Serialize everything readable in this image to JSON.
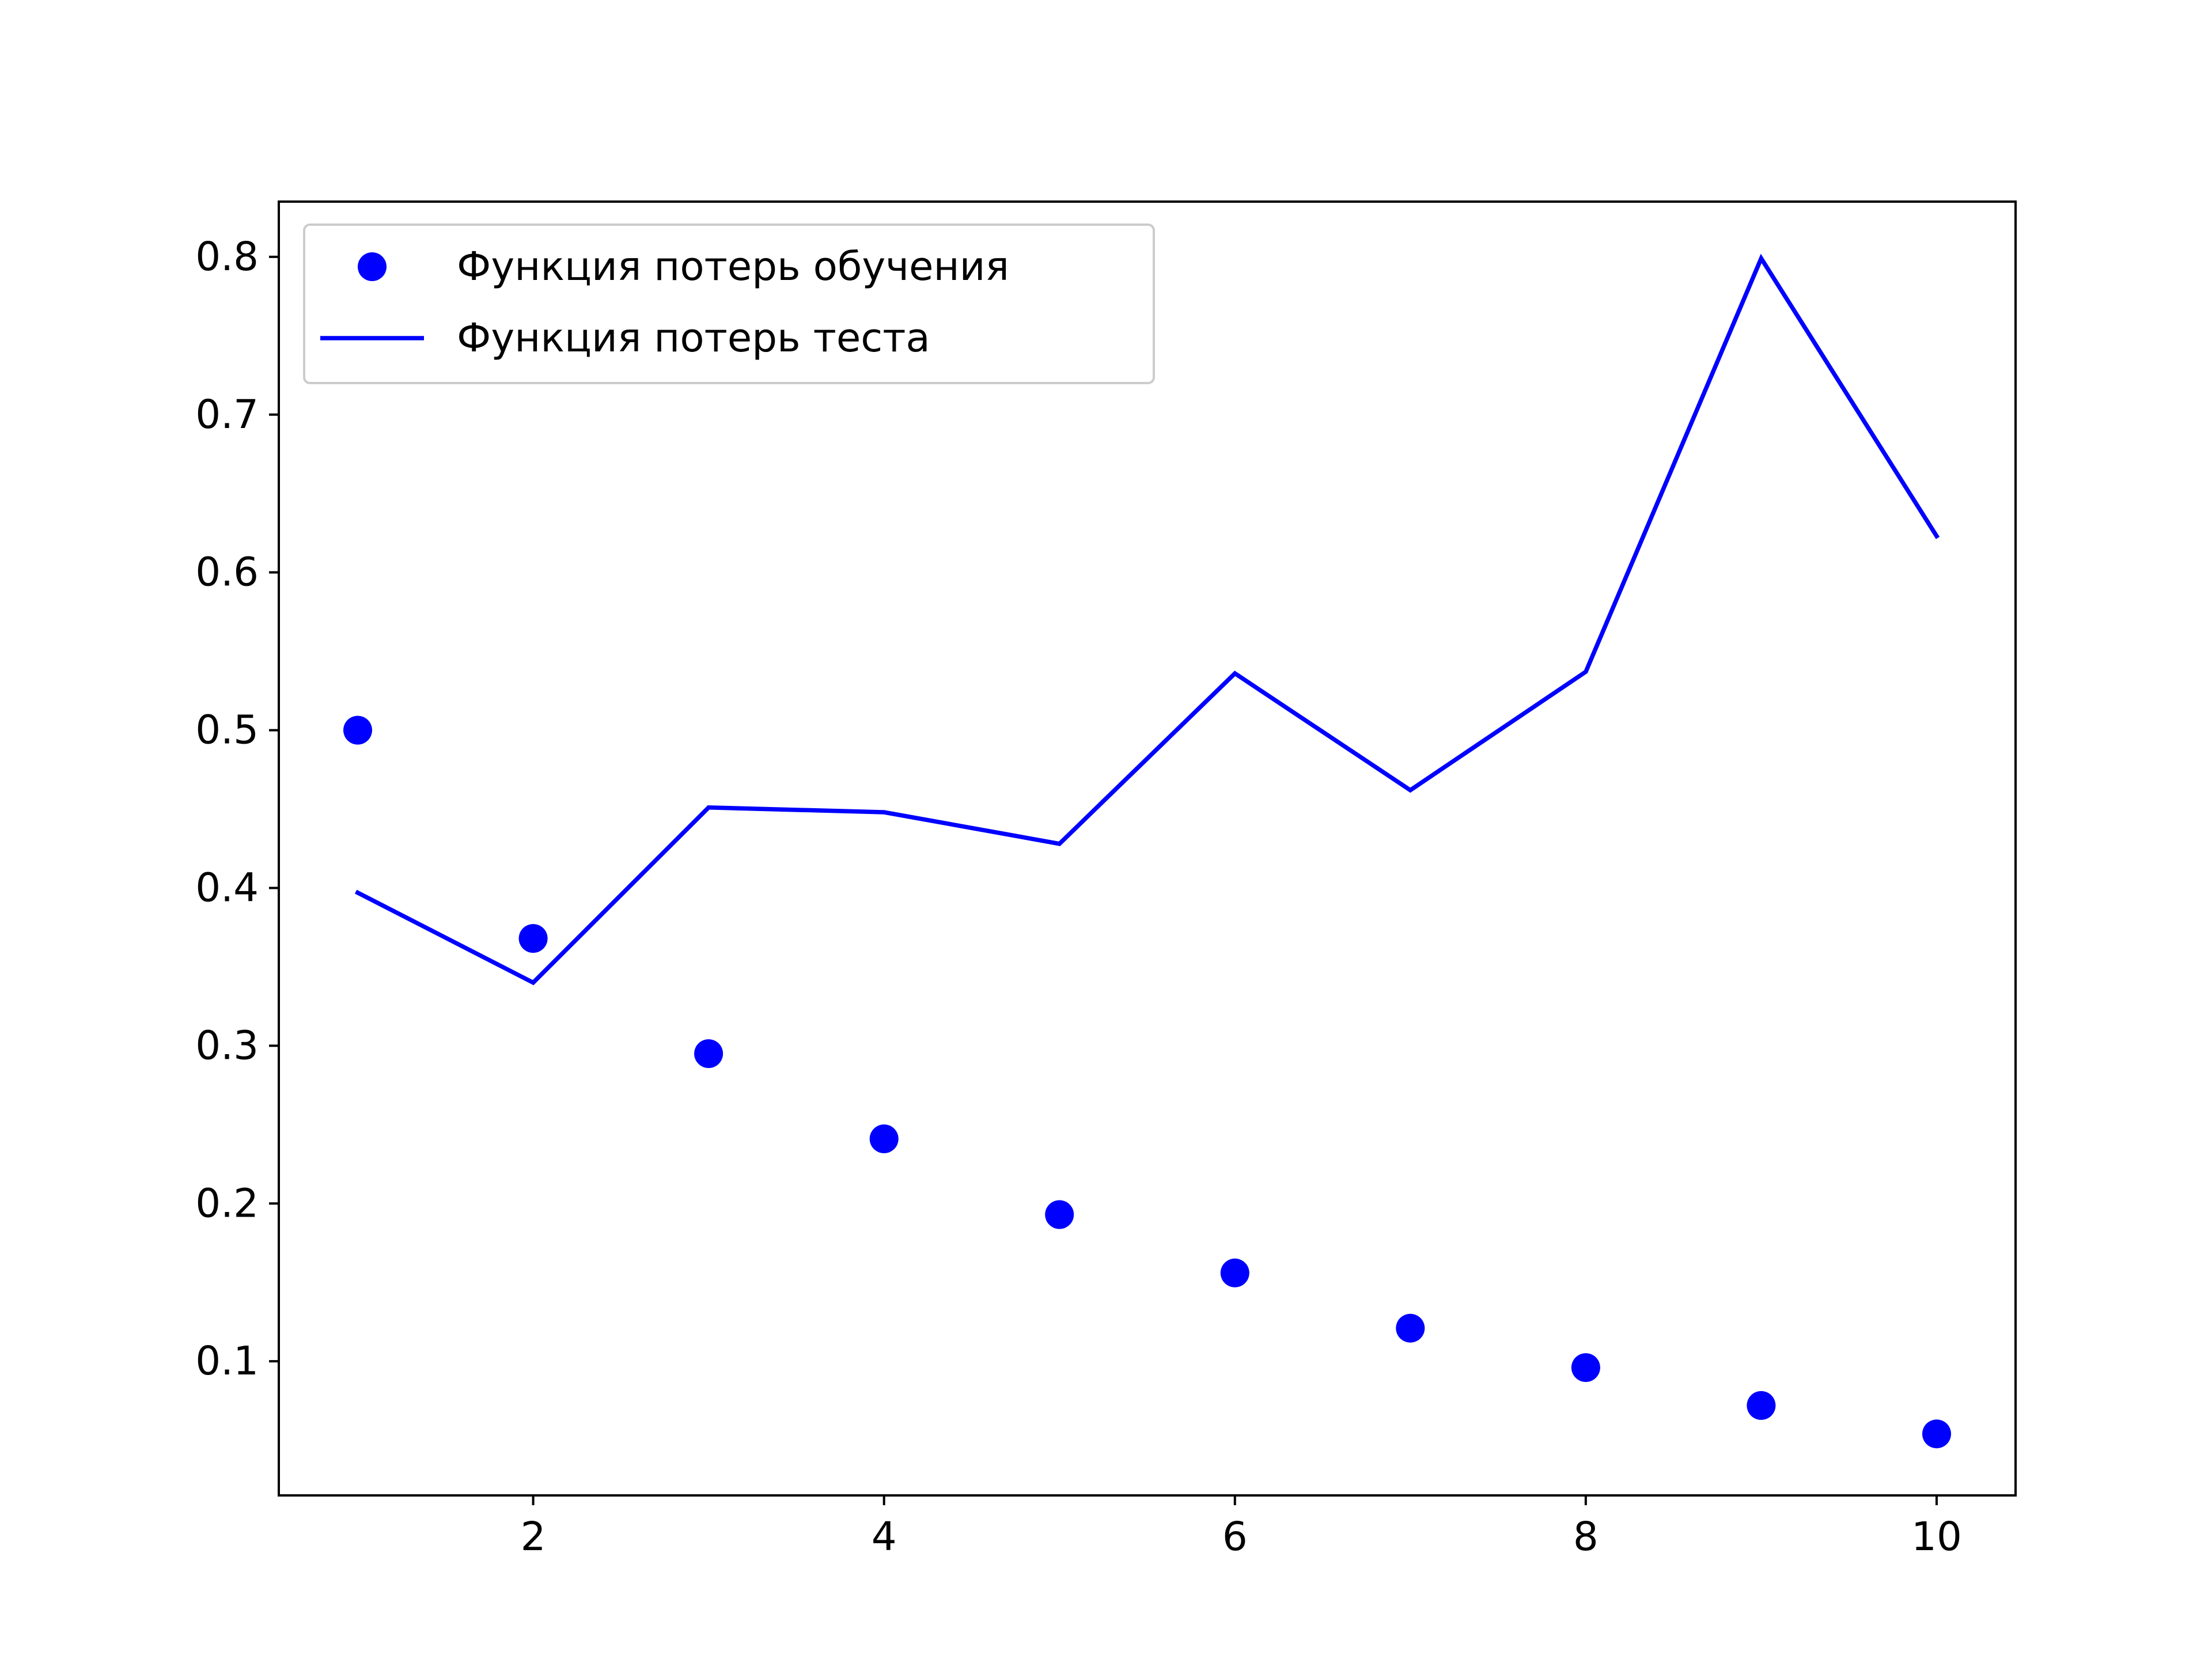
{
  "chart_data": {
    "type": "line",
    "title": "",
    "xlabel": "",
    "ylabel": "",
    "x": [
      1,
      2,
      3,
      4,
      5,
      6,
      7,
      8,
      9,
      10
    ],
    "xlim": [
      0.55,
      10.45
    ],
    "ylim": [
      0.015,
      0.835
    ],
    "x_ticks": [
      2,
      4,
      6,
      8,
      10
    ],
    "x_tick_labels": [
      "2",
      "4",
      "6",
      "8",
      "10"
    ],
    "y_ticks": [
      0.1,
      0.2,
      0.3,
      0.4,
      0.5,
      0.6,
      0.7,
      0.8
    ],
    "y_tick_labels": [
      "0.1",
      "0.2",
      "0.3",
      "0.4",
      "0.5",
      "0.6",
      "0.7",
      "0.8"
    ],
    "grid": false,
    "legend_position": "top-left",
    "series": [
      {
        "name": "Функция потерь обучения",
        "style": "markers",
        "color": "#0000ff",
        "values": [
          0.5,
          0.368,
          0.295,
          0.241,
          0.193,
          0.156,
          0.121,
          0.096,
          0.072,
          0.054
        ]
      },
      {
        "name": "Функция потерь теста",
        "style": "line",
        "color": "#0000ff",
        "values": [
          0.397,
          0.34,
          0.451,
          0.448,
          0.428,
          0.536,
          0.462,
          0.537,
          0.799,
          0.623
        ]
      }
    ]
  }
}
